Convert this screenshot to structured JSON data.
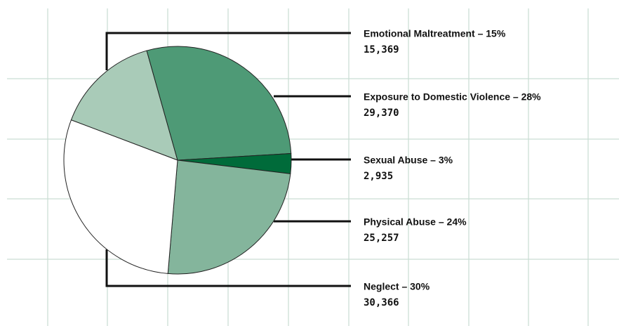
{
  "chart_data": {
    "type": "pie",
    "categories": [
      "Emotional Maltreatment – 15%",
      "Exposure to Domestic Violence – 28%",
      "Sexual Abuse – 3%",
      "Physical Abuse – 24%",
      "Neglect – 30%"
    ],
    "values": [
      15369,
      29370,
      2935,
      25257,
      30366
    ],
    "value_labels": [
      "15,369",
      "29,370",
      "2,935",
      "25,257",
      "30,366"
    ],
    "colors": [
      "#a9cbb8",
      "#4e9a76",
      "#006b3a",
      "#84b59c",
      "#ffffff"
    ]
  }
}
